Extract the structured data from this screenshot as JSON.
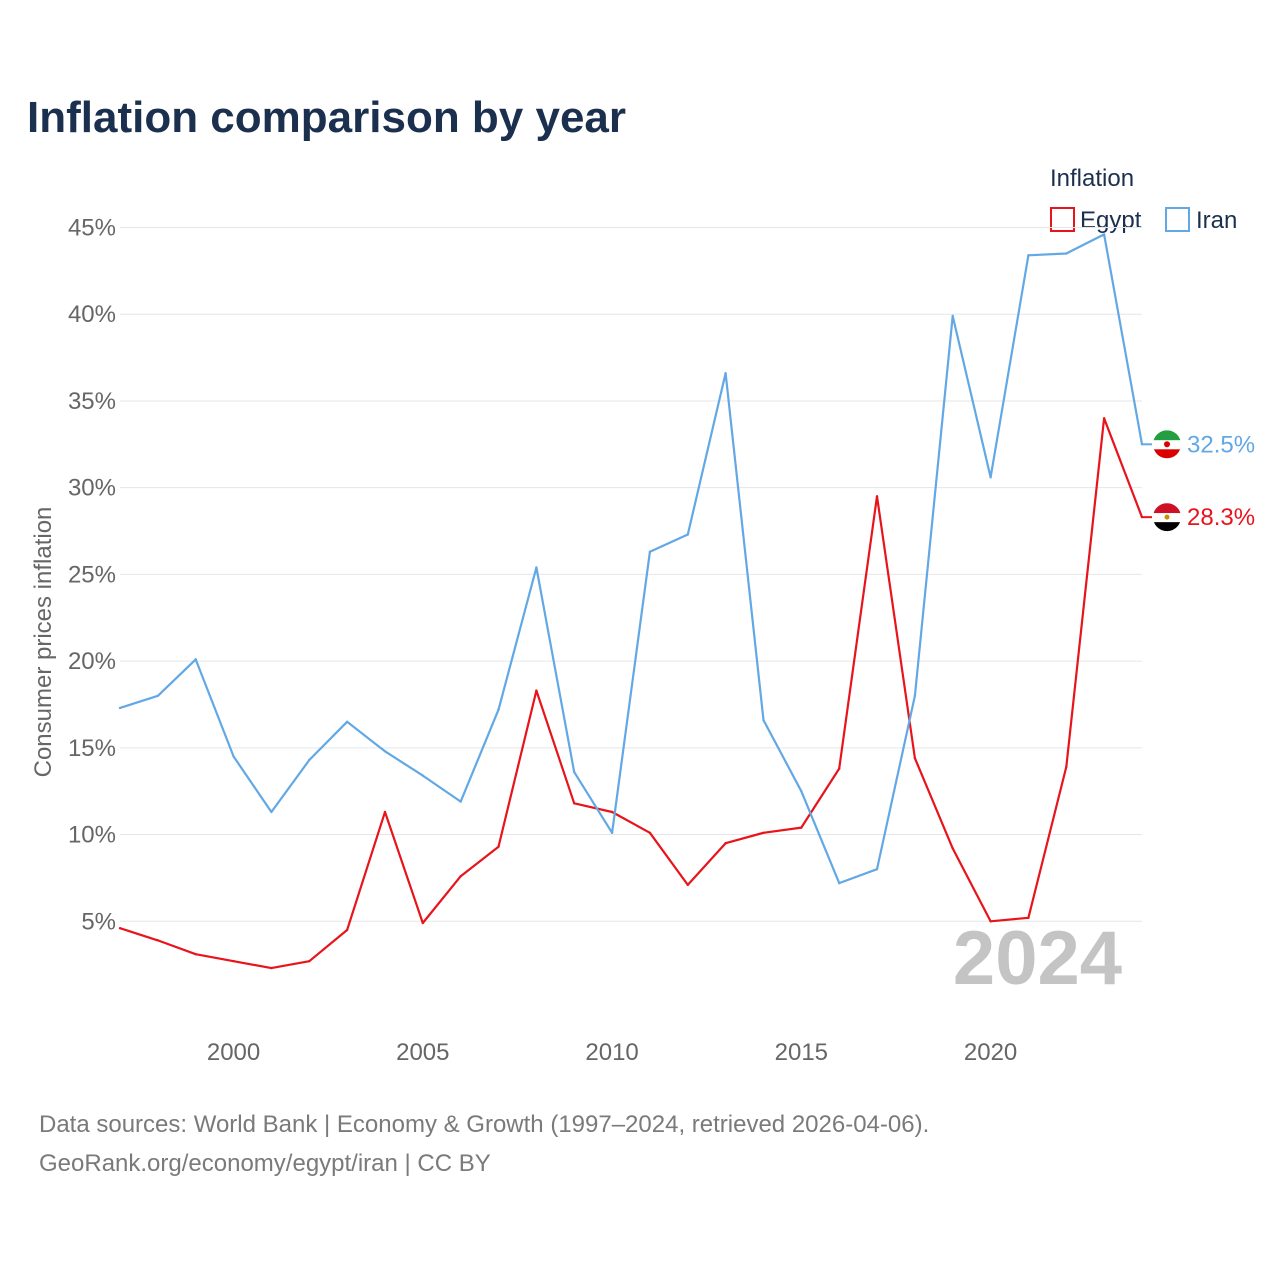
{
  "title": "Inflation comparison by year",
  "legend": {
    "title": "Inflation",
    "items": [
      {
        "name": "Egypt",
        "color": "#e8141b"
      },
      {
        "name": "Iran",
        "color": "#62a8e5"
      }
    ]
  },
  "watermark_year": "2024",
  "footer": {
    "line1": "Data sources: World Bank | Economy & Growth (1997–2024, retrieved 2026-04-06).",
    "line2": "GeoRank.org/economy/egypt/iran | CC BY"
  },
  "end_labels": {
    "iran": "32.5%",
    "egypt": "28.3%"
  },
  "chart_data": {
    "type": "line",
    "title": "Inflation comparison by year",
    "xlabel": "",
    "ylabel": "Consumer prices inflation",
    "xlim": [
      1997,
      2024
    ],
    "ylim": [
      0,
      45
    ],
    "x_ticks": [
      2000,
      2005,
      2010,
      2015,
      2020
    ],
    "x_tick_labels": [
      "2000",
      "2005",
      "2010",
      "2015",
      "2020"
    ],
    "y_ticks": [
      5,
      10,
      15,
      20,
      25,
      30,
      35,
      40,
      45
    ],
    "y_tick_labels": [
      "5%",
      "10%",
      "15%",
      "20%",
      "25%",
      "30%",
      "35%",
      "40%",
      "45%"
    ],
    "grid": true,
    "legend_position": "top-right",
    "x": [
      1997,
      1998,
      1999,
      2000,
      2001,
      2002,
      2003,
      2004,
      2005,
      2006,
      2007,
      2008,
      2009,
      2010,
      2011,
      2012,
      2013,
      2014,
      2015,
      2016,
      2017,
      2018,
      2019,
      2020,
      2021,
      2022,
      2023,
      2024
    ],
    "series": [
      {
        "name": "Egypt",
        "color": "#e8141b",
        "values": [
          4.6,
          3.9,
          3.1,
          2.7,
          2.3,
          2.7,
          4.5,
          11.3,
          4.9,
          7.6,
          9.3,
          18.3,
          11.8,
          11.3,
          10.1,
          7.1,
          9.5,
          10.1,
          10.4,
          13.8,
          29.5,
          14.4,
          9.2,
          5.0,
          5.2,
          13.9,
          34.0,
          28.3
        ]
      },
      {
        "name": "Iran",
        "color": "#62a8e5",
        "values": [
          17.3,
          18.0,
          20.1,
          14.5,
          11.3,
          14.3,
          16.5,
          14.8,
          13.4,
          11.9,
          17.2,
          25.4,
          13.6,
          10.1,
          26.3,
          27.3,
          36.6,
          16.6,
          12.5,
          7.2,
          8.0,
          18.0,
          39.9,
          30.6,
          43.4,
          43.5,
          44.6,
          32.5
        ]
      }
    ]
  }
}
